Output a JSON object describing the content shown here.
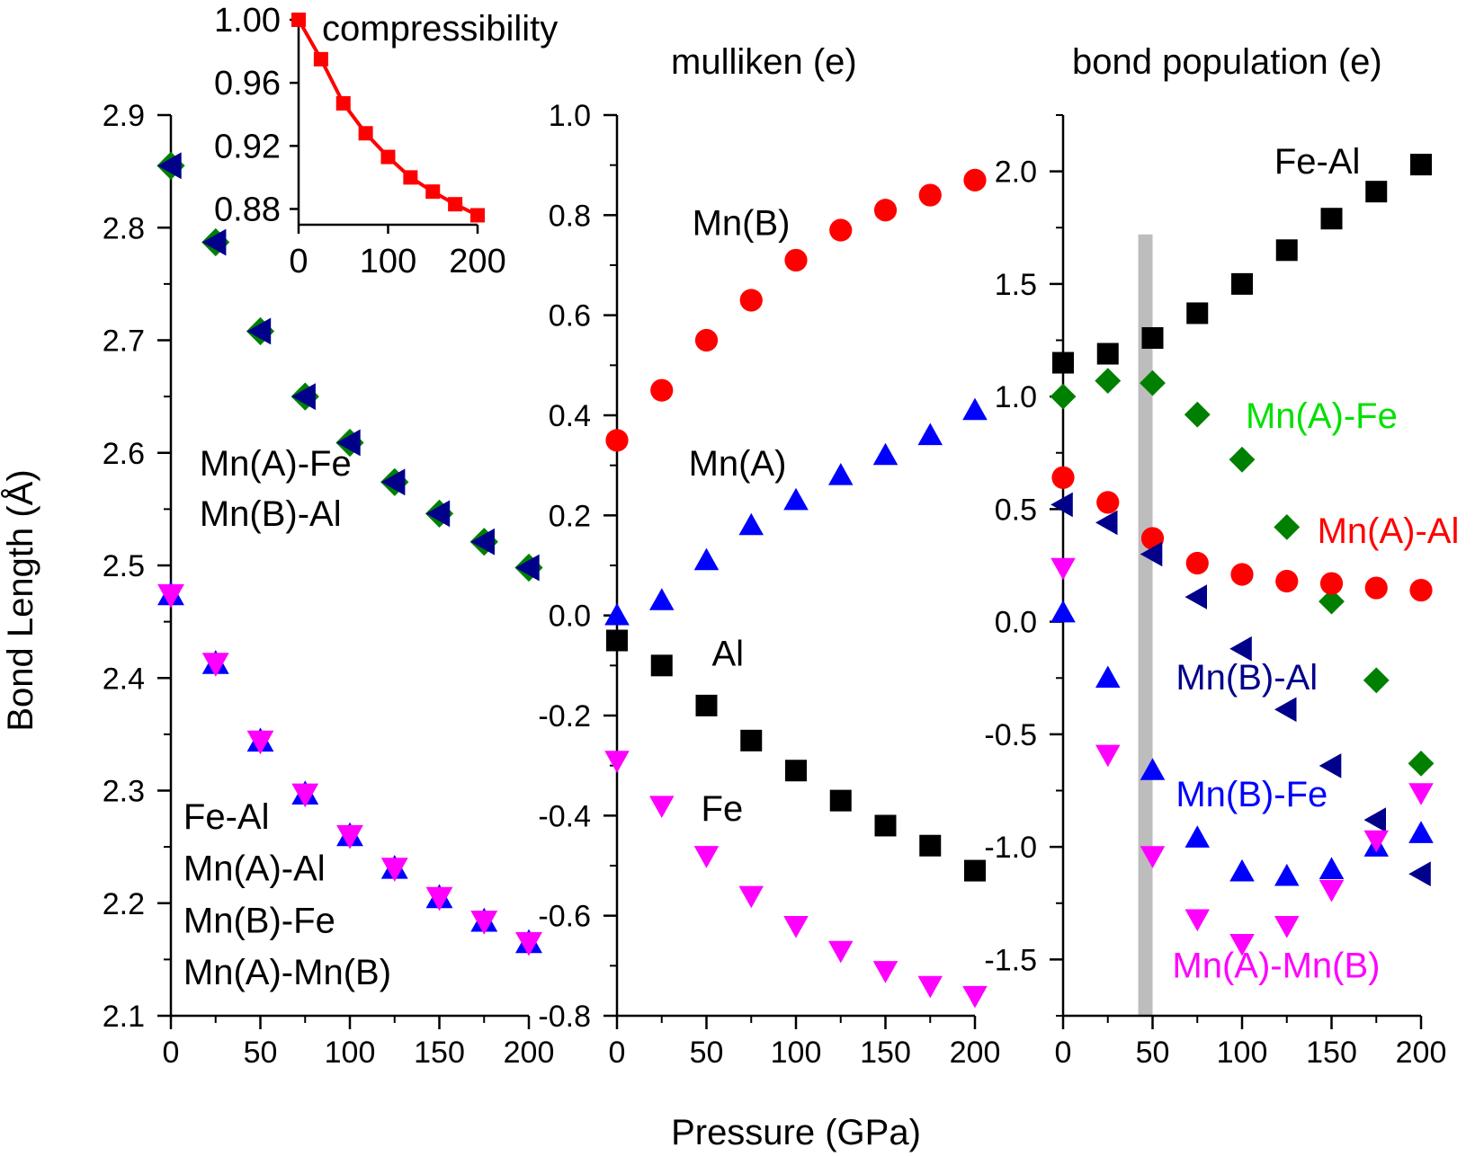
{
  "x_axis_title": "Pressure (GPa)",
  "colors": {
    "black": "#000000",
    "red": "#ff0000",
    "blue": "#0000ff",
    "magenta": "#ff00ff",
    "green": "#008000",
    "navy": "#00008b",
    "lime": "#00e000",
    "gray": "#bdbdbd"
  },
  "chart_data": [
    {
      "id": "bond-length",
      "type": "scatter",
      "title": "",
      "xlabel": "Pressure (GPa)",
      "ylabel": "Bond Length (Å)",
      "xlim": [
        0,
        200
      ],
      "ylim": [
        2.1,
        2.9
      ],
      "xticks": [
        0,
        50,
        100,
        150,
        200
      ],
      "yticks": [
        2.1,
        2.2,
        2.3,
        2.4,
        2.5,
        2.6,
        2.7,
        2.8,
        2.9
      ],
      "ytick_labels": [
        "2.1",
        "2.2",
        "2.3",
        "2.4",
        "2.5",
        "2.6",
        "2.7",
        "2.8",
        "2.9"
      ],
      "labels": [
        {
          "text": "Mn(A)-Fe",
          "x": 16,
          "y": 2.58,
          "color": "#000000"
        },
        {
          "text": "Mn(B)-Al",
          "x": 16,
          "y": 2.535,
          "color": "#000000"
        },
        {
          "text": "Fe-Al",
          "x": 7,
          "y": 2.266,
          "color": "#000000"
        },
        {
          "text": "Mn(A)-Al",
          "x": 7,
          "y": 2.22,
          "color": "#000000"
        },
        {
          "text": "Mn(B)-Fe",
          "x": 7,
          "y": 2.174,
          "color": "#000000"
        },
        {
          "text": "Mn(A)-Mn(B)",
          "x": 7,
          "y": 2.128,
          "color": "#000000"
        }
      ],
      "x": [
        0,
        25,
        50,
        75,
        100,
        125,
        150,
        175,
        200
      ],
      "series": [
        {
          "name": "Mn(A)-Fe",
          "marker": "diamond",
          "color": "#008000",
          "values": [
            2.855,
            2.787,
            2.708,
            2.65,
            2.609,
            2.574,
            2.546,
            2.521,
            2.498
          ]
        },
        {
          "name": "Mn(B)-Al",
          "marker": "triangle-left",
          "color": "#00008b",
          "values": [
            2.855,
            2.787,
            2.708,
            2.65,
            2.609,
            2.574,
            2.546,
            2.521,
            2.498
          ]
        },
        {
          "name": "Mn(B)-Fe",
          "marker": "triangle-up",
          "color": "#0000ff",
          "values": [
            2.474,
            2.413,
            2.344,
            2.297,
            2.26,
            2.231,
            2.205,
            2.184,
            2.165
          ]
        },
        {
          "name": "Mn(A)-Mn(B)",
          "marker": "triangle-down",
          "color": "#ff00ff",
          "values": [
            2.474,
            2.413,
            2.344,
            2.297,
            2.26,
            2.231,
            2.205,
            2.184,
            2.165
          ]
        }
      ]
    },
    {
      "id": "compressibility",
      "type": "line",
      "title": "compressibility",
      "xlim": [
        0,
        200
      ],
      "ylim": [
        0.87,
        1.0
      ],
      "xticks": [
        0,
        100,
        200
      ],
      "yticks": [
        0.88,
        0.92,
        0.96,
        1.0
      ],
      "ytick_labels": [
        "0.88",
        "0.92",
        "0.96",
        "1.00"
      ],
      "x": [
        0,
        25,
        50,
        75,
        100,
        125,
        150,
        175,
        200
      ],
      "series": [
        {
          "name": "compressibility",
          "marker": "square",
          "color": "#ff0000",
          "values": [
            1.0,
            0.975,
            0.947,
            0.928,
            0.913,
            0.9,
            0.891,
            0.883,
            0.876
          ]
        }
      ]
    },
    {
      "id": "mulliken",
      "type": "scatter",
      "title": "mulliken (e)",
      "xlabel": "Pressure (GPa)",
      "xlim": [
        0,
        200
      ],
      "ylim": [
        -0.8,
        1.0
      ],
      "xticks": [
        0,
        50,
        100,
        150,
        200
      ],
      "yticks": [
        -0.8,
        -0.6,
        -0.4,
        -0.2,
        0.0,
        0.2,
        0.4,
        0.6,
        0.8,
        1.0
      ],
      "ytick_labels": [
        "-0.8",
        "-0.6",
        "-0.4",
        "-0.2",
        "0.0",
        "0.2",
        "0.4",
        "0.6",
        "0.8",
        "1.0"
      ],
      "labels": [
        {
          "text": "Mn(B)",
          "x": 42,
          "y": 0.76,
          "color": "#000000"
        },
        {
          "text": "Mn(A)",
          "x": 40,
          "y": 0.28,
          "color": "#000000"
        },
        {
          "text": "Al",
          "x": 53,
          "y": -0.1,
          "color": "#000000"
        },
        {
          "text": "Fe",
          "x": 47,
          "y": -0.41,
          "color": "#000000"
        }
      ],
      "x": [
        0,
        25,
        50,
        75,
        100,
        125,
        150,
        175,
        200
      ],
      "series": [
        {
          "name": "Mn(B)",
          "marker": "circle",
          "color": "#ff0000",
          "values": [
            0.35,
            0.45,
            0.55,
            0.63,
            0.71,
            0.77,
            0.81,
            0.84,
            0.87
          ]
        },
        {
          "name": "Mn(A)",
          "marker": "triangle-up",
          "color": "#0000ff",
          "values": [
            0.0,
            0.03,
            0.11,
            0.18,
            0.23,
            0.28,
            0.32,
            0.36,
            0.41
          ]
        },
        {
          "name": "Al",
          "marker": "square",
          "color": "#000000",
          "values": [
            -0.05,
            -0.1,
            -0.18,
            -0.25,
            -0.31,
            -0.37,
            -0.42,
            -0.46,
            -0.51
          ]
        },
        {
          "name": "Fe",
          "marker": "triangle-down",
          "color": "#ff00ff",
          "values": [
            -0.29,
            -0.38,
            -0.48,
            -0.56,
            -0.62,
            -0.67,
            -0.71,
            -0.74,
            -0.76
          ]
        }
      ]
    },
    {
      "id": "bond-population",
      "type": "scatter",
      "title": "bond population (e)",
      "xlabel": "Pressure (GPa)",
      "xlim": [
        0,
        200
      ],
      "ylim": [
        -1.75,
        2.25
      ],
      "xticks": [
        0,
        50,
        100,
        150,
        200
      ],
      "yticks": [
        -1.5,
        -1.0,
        -0.5,
        0.0,
        0.5,
        1.0,
        1.5,
        2.0
      ],
      "ytick_labels": [
        "-1.5",
        "-1.0",
        "-0.5",
        "0.0",
        "0.5",
        "1.0",
        "1.5",
        "2.0"
      ],
      "shaded_band": [
        42,
        50
      ],
      "labels": [
        {
          "text": "Fe-Al",
          "x": 118,
          "y": 1.99,
          "color": "#000000"
        },
        {
          "text": "Mn(A)-Fe",
          "x": 102,
          "y": 0.86,
          "color": "#00e000"
        },
        {
          "text": "Mn(A)-Al",
          "x": 142,
          "y": 0.35,
          "color": "#ff0000"
        },
        {
          "text": "Mn(B)-Al",
          "x": 63,
          "y": -0.3,
          "color": "#00008b"
        },
        {
          "text": "Mn(B)-Fe",
          "x": 63,
          "y": -0.82,
          "color": "#0000ff"
        },
        {
          "text": "Mn(A)-Mn(B)",
          "x": 61,
          "y": -1.58,
          "color": "#ff00ff"
        }
      ],
      "x": [
        0,
        25,
        50,
        75,
        100,
        125,
        150,
        175,
        200
      ],
      "series": [
        {
          "name": "Fe-Al",
          "marker": "square",
          "color": "#000000",
          "values": [
            1.15,
            1.19,
            1.26,
            1.37,
            1.5,
            1.65,
            1.79,
            1.91,
            2.03
          ]
        },
        {
          "name": "Mn(A)-Fe",
          "marker": "diamond",
          "color": "#008000",
          "values": [
            1.0,
            1.07,
            1.06,
            0.92,
            0.72,
            0.42,
            0.09,
            -0.26,
            -0.63
          ]
        },
        {
          "name": "Mn(A)-Al",
          "marker": "circle",
          "color": "#ff0000",
          "values": [
            0.64,
            0.53,
            0.37,
            0.26,
            0.21,
            0.18,
            0.17,
            0.15,
            0.14
          ]
        },
        {
          "name": "Mn(B)-Al",
          "marker": "triangle-left",
          "color": "#00008b",
          "values": [
            0.52,
            0.44,
            0.3,
            0.11,
            -0.12,
            -0.39,
            -0.64,
            -0.88,
            -1.12
          ]
        },
        {
          "name": "Mn(B)-Fe",
          "marker": "triangle-up",
          "color": "#0000ff",
          "values": [
            0.04,
            -0.25,
            -0.66,
            -0.96,
            -1.11,
            -1.13,
            -1.1,
            -1.0,
            -0.94
          ]
        },
        {
          "name": "Mn(A)-Mn(B)",
          "marker": "triangle-down",
          "color": "#ff00ff",
          "values": [
            0.24,
            -0.59,
            -1.04,
            -1.32,
            -1.43,
            -1.35,
            -1.19,
            -0.97,
            -0.76
          ]
        }
      ]
    }
  ]
}
